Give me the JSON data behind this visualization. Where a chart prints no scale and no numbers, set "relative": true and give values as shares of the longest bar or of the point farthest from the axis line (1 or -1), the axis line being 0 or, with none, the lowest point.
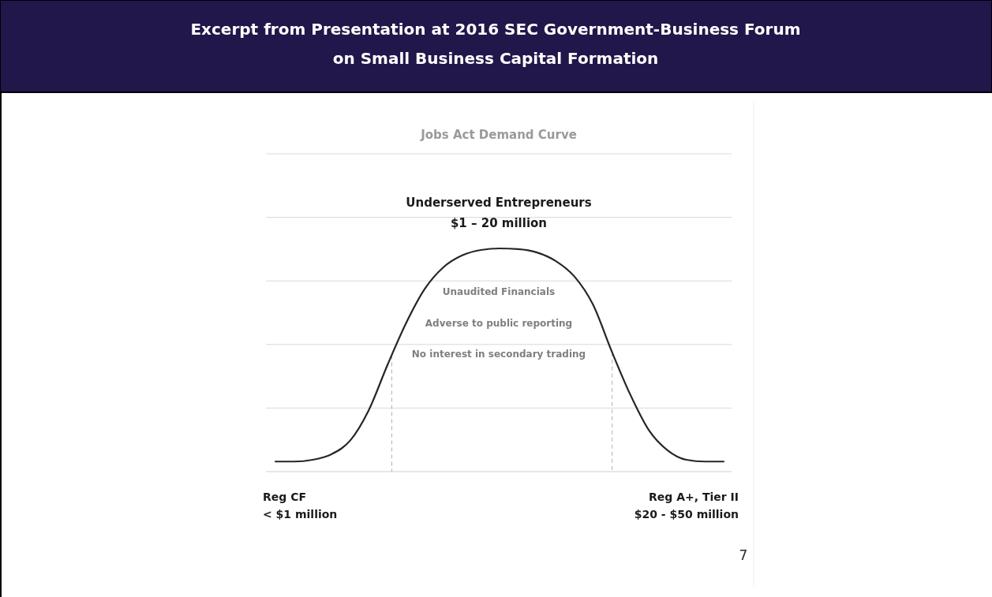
{
  "chart_data": {
    "type": "line",
    "title": "Excerpt from Presentation at 2016 SEC Government-Business Forum\non Small Business Capital Formation",
    "subtitle": "Jobs Act Demand Curve",
    "categories": [
      null,
      null,
      null,
      null,
      null,
      null,
      null,
      null,
      null,
      null,
      null,
      null,
      null,
      null,
      null,
      null,
      null,
      null,
      null,
      null,
      null,
      null,
      null,
      null,
      null
    ],
    "relative": true,
    "series": [
      {
        "color": "#262626",
        "values": [
          0.045,
          0.045,
          0.053,
          0.078,
          0.139,
          0.276,
          0.478,
          0.666,
          0.819,
          0.916,
          0.969,
          0.993,
          1,
          0.997,
          0.982,
          0.944,
          0.875,
          0.749,
          0.54,
          0.345,
          0.185,
          0.095,
          0.053,
          0.045,
          0.045
        ]
      }
    ],
    "grid": "y",
    "marker": "none",
    "line_style": "solid",
    "annotations": [
      "Underserved Entrepreneurs",
      "$1 – 20 million",
      "Unaudited Financials",
      "Adverse to public reporting",
      "No interest in secondary trading",
      "Reg CF",
      "< $1 million",
      "Reg A+, Tier II",
      "$20 - $50 million",
      "7"
    ]
  }
}
